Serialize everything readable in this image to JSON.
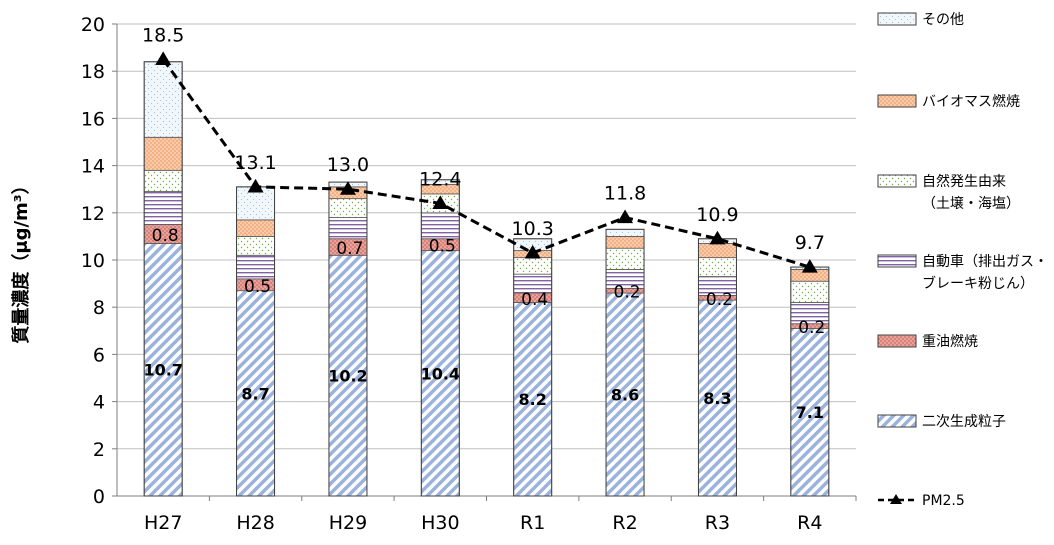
{
  "chart_data": {
    "type": "bar",
    "stacked": true,
    "ylabel": "質量濃度（μg/m³）",
    "ylim": [
      0,
      20
    ],
    "yticks": [
      0,
      2,
      4,
      6,
      8,
      10,
      12,
      14,
      16,
      18,
      20
    ],
    "grid": true,
    "legend_position": "right",
    "categories": [
      "H27",
      "H28",
      "H29",
      "H30",
      "R1",
      "R2",
      "R3",
      "R4"
    ],
    "series": [
      {
        "key": "secondary",
        "name": "二次生成粒子",
        "values": [
          10.7,
          8.7,
          10.2,
          10.4,
          8.2,
          8.6,
          8.3,
          7.1
        ],
        "color": "#b4c6e7",
        "value_labels": [
          "10.7",
          "8.7",
          "10.2",
          "10.4",
          "8.2",
          "8.6",
          "8.3",
          "7.1"
        ]
      },
      {
        "key": "heavy_oil",
        "name": "重油燃焼",
        "values": [
          0.8,
          0.5,
          0.7,
          0.5,
          0.4,
          0.2,
          0.2,
          0.2
        ],
        "color": "#e8a29a",
        "value_labels": [
          "0.8",
          "0.5",
          "0.7",
          "0.5",
          "0.4",
          "0.2",
          "0.2",
          "0.2"
        ]
      },
      {
        "key": "vehicle",
        "name": "自動車（排出ガス・ブレーキ粉じん）",
        "legend_lines": [
          "自動車（排出ガス・",
          "ブレーキ粉じん）"
        ],
        "values": [
          1.4,
          1.0,
          0.9,
          1.1,
          0.8,
          0.8,
          0.8,
          0.9
        ],
        "color": "#d9c6e8"
      },
      {
        "key": "natural",
        "name": "自然発生由来（土壌・海塩）",
        "legend_lines": [
          "自然発生由来",
          "（土壌・海塩）"
        ],
        "values": [
          0.9,
          0.8,
          0.8,
          0.8,
          0.7,
          0.9,
          0.8,
          0.9
        ],
        "color": "#e2efda"
      },
      {
        "key": "biomass",
        "name": "バイオマス燃焼",
        "values": [
          1.4,
          0.7,
          0.5,
          0.4,
          0.3,
          0.5,
          0.6,
          0.5
        ],
        "color": "#f4b183"
      },
      {
        "key": "other",
        "name": "その他",
        "values": [
          3.2,
          1.4,
          0.2,
          0.2,
          0.5,
          0.3,
          0.2,
          0.1
        ],
        "color": "#ddebf7"
      }
    ],
    "line": {
      "name": "PM2.5",
      "values": [
        18.5,
        13.1,
        13.0,
        12.4,
        10.3,
        11.8,
        10.9,
        9.7
      ],
      "labels": [
        "18.5",
        "13.1",
        "13.0",
        "12.4",
        "10.3",
        "11.8",
        "10.9",
        "9.7"
      ],
      "color": "#000000"
    }
  }
}
